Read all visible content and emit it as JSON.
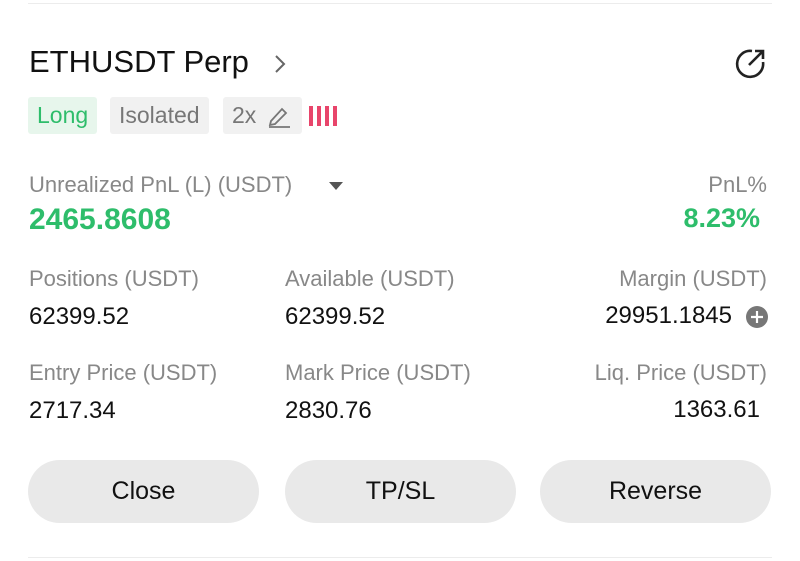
{
  "header": {
    "title": "ETHUSDT Perp"
  },
  "tags": [
    "Long",
    "Isolated",
    "2x"
  ],
  "pnl": {
    "label": "Unrealized PnL (L) (USDT)",
    "value": "2465.8608",
    "percent_label": "PnL%",
    "percent_value": "8.23%"
  },
  "fields": [
    {
      "label": "Positions (USDT)",
      "value": "62399.52"
    },
    {
      "label": "Available (USDT)",
      "value": "62399.52"
    },
    {
      "label": "Margin (USDT)",
      "value": "29951.1845"
    },
    {
      "label": "Entry Price (USDT)",
      "value": "2717.34"
    },
    {
      "label": "Mark Price (USDT)",
      "value": "2830.76"
    },
    {
      "label": "Liq. Price (USDT)",
      "value": "1363.61"
    }
  ],
  "buttons": [
    "Close",
    "TP/SL",
    "Reverse"
  ]
}
